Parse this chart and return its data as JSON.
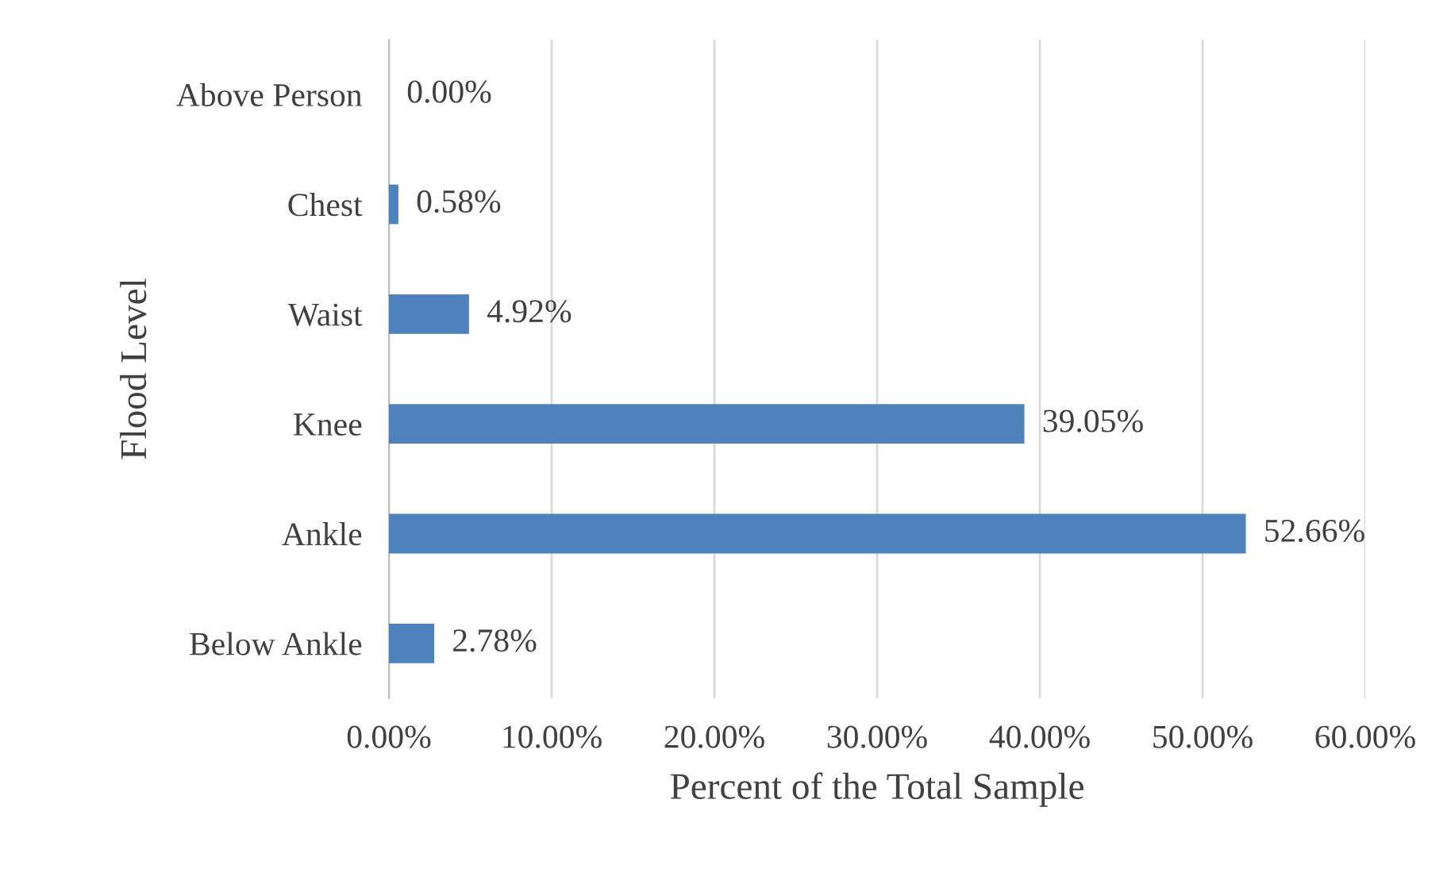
{
  "chart_data": {
    "type": "bar",
    "orientation": "horizontal",
    "xlabel": "Percent of the Total Sample",
    "ylabel": "Flood Level",
    "categories": [
      "Above Person",
      "Chest",
      "Waist",
      "Knee",
      "Ankle",
      "Below Ankle"
    ],
    "values": [
      0,
      0.58,
      4.92,
      39.05,
      52.66,
      2.78
    ],
    "value_labels": [
      "0.00%",
      "0.58%",
      "4.92%",
      "39.05%",
      "52.66%",
      "2.78%"
    ],
    "color": "#4f81bd",
    "xlim": [
      0,
      60
    ],
    "xticks": [
      {
        "value": 0,
        "label": "0.00%"
      },
      {
        "value": 10,
        "label": "10.00%"
      },
      {
        "value": 20,
        "label": "20.00%"
      },
      {
        "value": 30,
        "label": "30.00%"
      },
      {
        "value": 40,
        "label": "40.00%"
      },
      {
        "value": 50,
        "label": "50.00%"
      },
      {
        "value": 60,
        "label": "60.00%"
      }
    ],
    "grid": "x"
  }
}
